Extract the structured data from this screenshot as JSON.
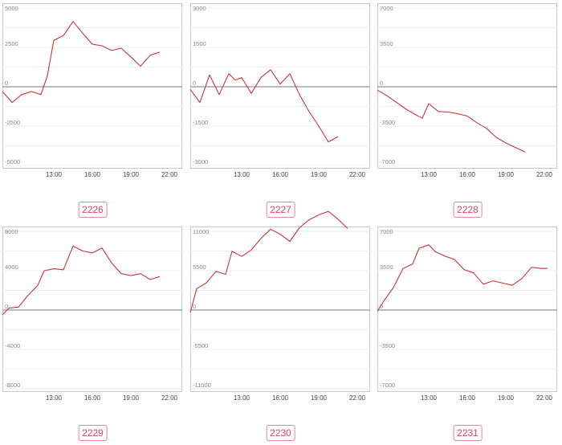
{
  "chart_data": [
    {
      "type": "line",
      "label": "2226",
      "ylim": [
        -5000,
        5000
      ],
      "yticks": [
        "5000",
        "2500",
        "0",
        "-2500",
        "-5000"
      ],
      "xticks": [
        "13:00",
        "16:00",
        "19:00",
        "22:00"
      ],
      "series": [
        {
          "x": [
            "9:00",
            "9:45",
            "10:30",
            "11:15",
            "12:00",
            "12:30",
            "13:00",
            "13:45",
            "14:30",
            "15:15",
            "16:00",
            "16:45",
            "17:30",
            "18:15",
            "19:00",
            "19:45",
            "20:30",
            "21:15"
          ],
          "values": [
            -300,
            -1000,
            -500,
            -300,
            -500,
            700,
            2950,
            3250,
            4150,
            3400,
            2700,
            2600,
            2300,
            2450,
            1900,
            1300,
            2000,
            2200
          ]
        }
      ],
      "line_color": "#c8353b",
      "grid": true
    },
    {
      "type": "line",
      "label": "2227",
      "ylim": [
        -3000,
        3000
      ],
      "yticks": [
        "3000",
        "1500",
        "0",
        "-1500",
        "-3000"
      ],
      "xticks": [
        "13:00",
        "16:00",
        "19:00",
        "22:00"
      ],
      "series": [
        {
          "x": [
            "9:00",
            "9:45",
            "10:30",
            "11:15",
            "12:00",
            "12:30",
            "13:00",
            "13:45",
            "14:30",
            "15:15",
            "16:00",
            "16:45",
            "17:30",
            "18:15",
            "19:00",
            "19:45",
            "20:30"
          ],
          "values": [
            -100,
            -600,
            450,
            -300,
            500,
            250,
            350,
            -250,
            350,
            650,
            100,
            500,
            -300,
            -950,
            -1500,
            -2100,
            -1900
          ]
        }
      ],
      "line_color": "#c8353b",
      "grid": true
    },
    {
      "type": "line",
      "label": "2228",
      "ylim": [
        -7000,
        7000
      ],
      "yticks": [
        "7000",
        "3500",
        "0",
        "-3500",
        "-7000"
      ],
      "xticks": [
        "13:00",
        "16:00",
        "19:00",
        "22:00"
      ],
      "series": [
        {
          "x": [
            "9:00",
            "9:45",
            "10:30",
            "11:15",
            "12:00",
            "12:30",
            "13:00",
            "13:45",
            "14:30",
            "15:15",
            "16:00",
            "16:45",
            "17:30",
            "18:15",
            "19:00",
            "19:45",
            "20:30"
          ],
          "values": [
            -300,
            -800,
            -1400,
            -2000,
            -2500,
            -2800,
            -1500,
            -2200,
            -2250,
            -2400,
            -2600,
            -3200,
            -3700,
            -4500,
            -5000,
            -5400,
            -5800
          ]
        }
      ],
      "line_color": "#c8353b",
      "grid": true
    },
    {
      "type": "line",
      "label": "2229",
      "ylim": [
        -8000,
        8000
      ],
      "yticks": [
        "8000",
        "4000",
        "0",
        "-4000",
        "-8000"
      ],
      "xticks": [
        "13:00",
        "16:00",
        "19:00",
        "22:00"
      ],
      "series": [
        {
          "x": [
            "9:00",
            "9:30",
            "10:15",
            "11:00",
            "11:45",
            "12:15",
            "13:00",
            "13:45",
            "14:30",
            "15:15",
            "16:00",
            "16:45",
            "17:30",
            "18:15",
            "19:00",
            "19:45",
            "20:30",
            "21:15"
          ],
          "values": [
            -500,
            200,
            300,
            1500,
            2500,
            4000,
            4200,
            4100,
            6500,
            6000,
            5800,
            6300,
            4800,
            3700,
            3500,
            3700,
            3100,
            3400
          ]
        }
      ],
      "line_color": "#c8353b",
      "grid": true
    },
    {
      "type": "line",
      "label": "2230",
      "ylim": [
        -11000,
        11000
      ],
      "yticks": [
        "11000",
        "5500",
        "0",
        "-5500",
        "-11000"
      ],
      "xticks": [
        "13:00",
        "16:00",
        "19:00",
        "22:00"
      ],
      "series": [
        {
          "x": [
            "9:00",
            "9:30",
            "10:15",
            "11:00",
            "11:45",
            "12:15",
            "13:00",
            "13:45",
            "14:30",
            "15:15",
            "16:00",
            "16:45",
            "17:30",
            "18:15",
            "19:00",
            "19:45",
            "20:30",
            "21:15"
          ],
          "values": [
            -300,
            3000,
            3800,
            5400,
            5000,
            8200,
            7500,
            8400,
            10000,
            11300,
            10600,
            9600,
            11500,
            12600,
            13300,
            13800,
            12700,
            11400
          ]
        }
      ],
      "line_color": "#c8353b",
      "grid": true
    },
    {
      "type": "line",
      "label": "2231",
      "ylim": [
        -7000,
        7000
      ],
      "yticks": [
        "7000",
        "3500",
        "0",
        "-3500",
        "-7000"
      ],
      "xticks": [
        "13:00",
        "16:00",
        "19:00",
        "22:00"
      ],
      "series": [
        {
          "x": [
            "9:00",
            "9:30",
            "10:15",
            "11:00",
            "11:45",
            "12:15",
            "13:00",
            "13:30",
            "14:15",
            "15:00",
            "15:45",
            "16:30",
            "17:15",
            "18:00",
            "18:45",
            "19:30",
            "20:15",
            "21:00",
            "21:45",
            "22:15"
          ],
          "values": [
            -100,
            800,
            2000,
            3700,
            4100,
            5500,
            5800,
            5200,
            4800,
            4500,
            3600,
            3300,
            2300,
            2600,
            2400,
            2200,
            2800,
            3800,
            3700,
            3700
          ]
        }
      ],
      "line_color": "#c8353b",
      "grid": true
    }
  ]
}
